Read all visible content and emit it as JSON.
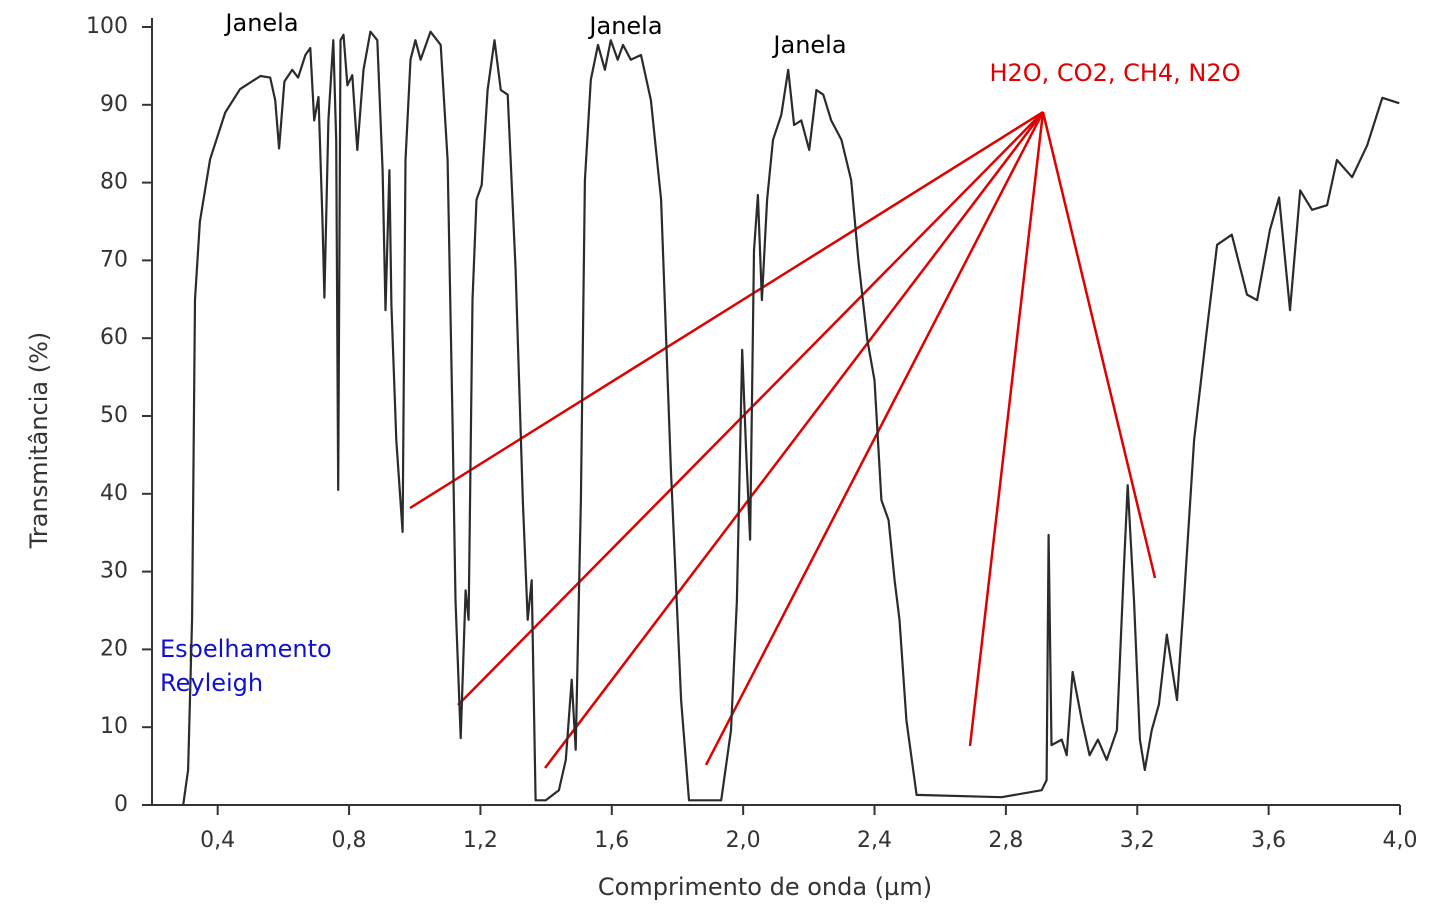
{
  "chart_data": {
    "type": "line",
    "x_label": "Comprimento de onda (µm)",
    "y_label": "Transmitância (%)",
    "annotations": [
      "Janela",
      "Janela",
      "Janela",
      "H2O, CO2, CH4, N2O",
      "Espelhamento",
      "Reyleigh"
    ],
    "xlim": [
      0.2,
      4.0
    ],
    "ylim": [
      0,
      100
    ],
    "xticks": [
      {
        "value": 0.4,
        "label": "0,4"
      },
      {
        "value": 0.8,
        "label": "0,8"
      },
      {
        "value": 1.2,
        "label": "1,2"
      },
      {
        "value": 1.6,
        "label": "1,6"
      },
      {
        "value": 2.0,
        "label": "2,0"
      },
      {
        "value": 2.4,
        "label": "2,4"
      },
      {
        "value": 2.8,
        "label": "2,8"
      },
      {
        "value": 3.2,
        "label": "3,2"
      },
      {
        "value": 3.6,
        "label": "3,6"
      },
      {
        "value": 4.0,
        "label": "4,0"
      }
    ],
    "yticks": [
      0,
      10,
      20,
      30,
      40,
      50,
      60,
      70,
      80,
      90,
      100
    ],
    "color": "#2b2b2b",
    "x": [
      0.295,
      0.31,
      0.322,
      0.331,
      0.346,
      0.377,
      0.423,
      0.468,
      0.53,
      0.56,
      0.575,
      0.587,
      0.603,
      0.627,
      0.645,
      0.667,
      0.682,
      0.694,
      0.707,
      0.719,
      0.725,
      0.737,
      0.752,
      0.761,
      0.767,
      0.774,
      0.783,
      0.795,
      0.81,
      0.825,
      0.844,
      0.865,
      0.886,
      0.902,
      0.911,
      0.923,
      0.929,
      0.944,
      0.963,
      0.972,
      0.987,
      1.002,
      1.018,
      1.048,
      1.079,
      1.1,
      1.115,
      1.124,
      1.14,
      1.155,
      1.164,
      1.176,
      1.188,
      1.204,
      1.222,
      1.243,
      1.262,
      1.283,
      1.307,
      1.329,
      1.344,
      1.356,
      1.368,
      1.399,
      1.439,
      1.46,
      1.478,
      1.49,
      1.506,
      1.518,
      1.536,
      1.558,
      1.579,
      1.597,
      1.618,
      1.634,
      1.658,
      1.689,
      1.719,
      1.75,
      1.78,
      1.811,
      1.835,
      1.933,
      1.963,
      1.981,
      1.997,
      2.009,
      2.021,
      2.033,
      2.045,
      2.057,
      2.073,
      2.091,
      2.116,
      2.137,
      2.155,
      2.177,
      2.201,
      2.223,
      2.244,
      2.268,
      2.299,
      2.329,
      2.351,
      2.378,
      2.4,
      2.421,
      2.443,
      2.461,
      2.476,
      2.497,
      2.528,
      2.787,
      2.909,
      2.924,
      2.93,
      2.939,
      2.97,
      2.985,
      3.003,
      3.031,
      3.055,
      3.08,
      3.107,
      3.138,
      3.159,
      3.171,
      3.19,
      3.208,
      3.223,
      3.244,
      3.266,
      3.29,
      3.321,
      3.342,
      3.373,
      3.412,
      3.443,
      3.488,
      3.534,
      3.565,
      3.604,
      3.632,
      3.665,
      3.696,
      3.732,
      3.778,
      3.808,
      3.854,
      3.9,
      3.946,
      3.998
    ],
    "values": [
      0,
      4.5,
      24,
      65,
      75,
      83,
      89,
      92,
      93.7,
      93.5,
      90.6,
      84.4,
      93,
      94.5,
      93.5,
      96.4,
      97.3,
      88,
      91,
      75,
      65.2,
      88,
      98.3,
      85.5,
      40.5,
      98.3,
      99,
      92.5,
      93.8,
      84.2,
      94.5,
      99.4,
      98.3,
      81.6,
      63.6,
      81.6,
      64.3,
      46.9,
      35.1,
      82.9,
      95.8,
      98.3,
      95.8,
      99.4,
      97.7,
      82.9,
      49.5,
      26.3,
      8.6,
      27.6,
      23.8,
      64.9,
      77.8,
      79.7,
      91.9,
      98.3,
      91.9,
      91.3,
      68.8,
      39.2,
      23.8,
      28.9,
      0.6,
      0.6,
      1.9,
      5.8,
      16.1,
      7.1,
      39.2,
      80.3,
      93.2,
      97.7,
      94.5,
      98.3,
      95.8,
      97.7,
      95.8,
      96.4,
      90.6,
      77.8,
      43.1,
      13.5,
      0.6,
      0.6,
      9.6,
      26.3,
      58.5,
      45.6,
      34.1,
      71.3,
      78.4,
      64.9,
      77.8,
      85.5,
      88.7,
      94.5,
      87.4,
      88,
      84.2,
      91.9,
      91.3,
      88,
      85.5,
      80.3,
      70,
      59.8,
      54.6,
      39.2,
      36.6,
      28.9,
      23.8,
      10.9,
      1.3,
      1,
      1.9,
      3.2,
      34.7,
      7.7,
      8.4,
      6.4,
      17.1,
      10.9,
      6.4,
      8.4,
      5.8,
      9.6,
      30.2,
      41.1,
      26.3,
      8.4,
      4.5,
      9.6,
      12.9,
      21.9,
      13.5,
      26.3,
      46.9,
      61.1,
      72,
      73.3,
      65.6,
      64.9,
      73.9,
      78.1,
      63.6,
      79,
      76.5,
      77.1,
      82.9,
      80.7,
      84.8,
      90.9,
      90.2
    ]
  }
}
